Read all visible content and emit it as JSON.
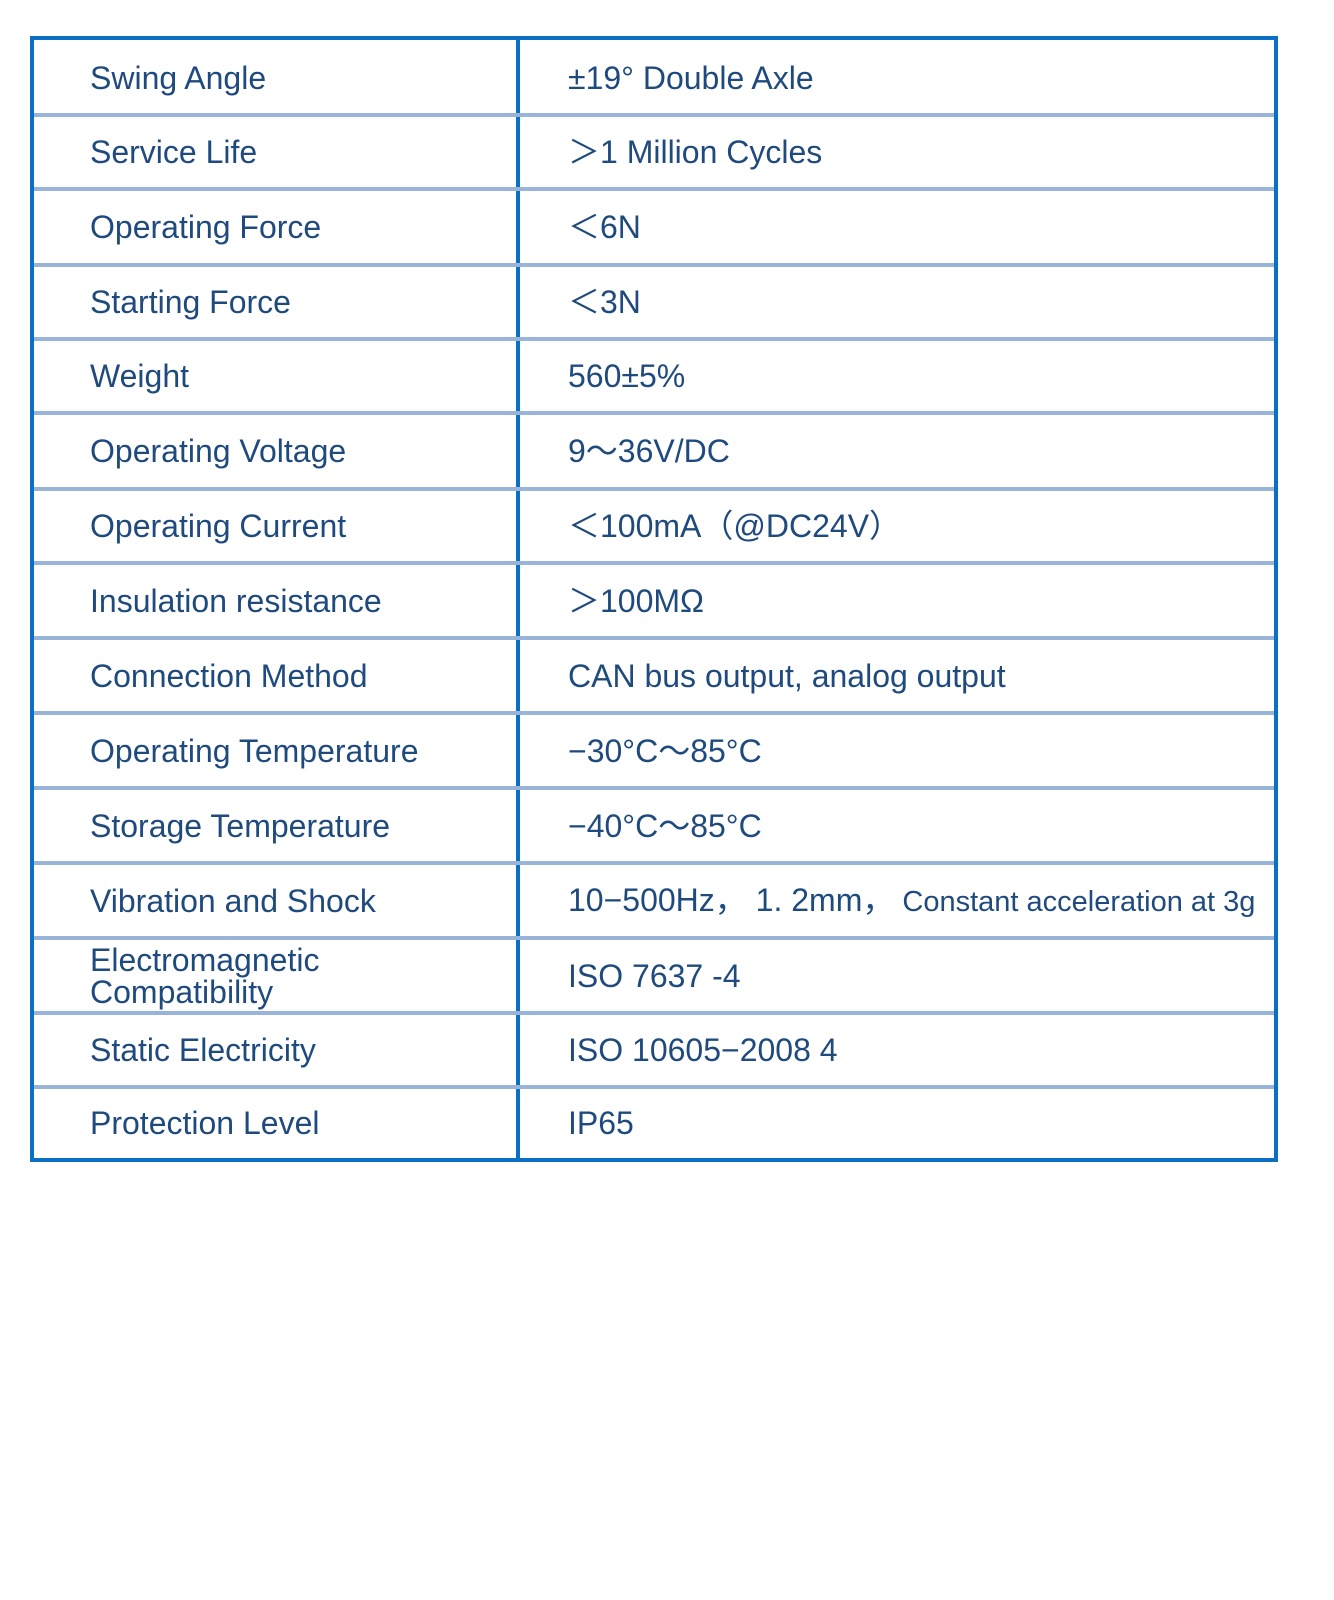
{
  "colors": {
    "border": "#0b6fc6",
    "row_separator": "#98b4d9",
    "text": "#1f4a7e"
  },
  "rows": [
    {
      "label": "Swing Angle",
      "value": "±19°  Double Axle"
    },
    {
      "label": "Service Life",
      "value": "＞1 Million Cycles"
    },
    {
      "label": "Operating Force",
      "value": "＜6N"
    },
    {
      "label": "Starting Force",
      "value": "＜3N"
    },
    {
      "label": "Weight",
      "value": "560±5%"
    },
    {
      "label": "Operating Voltage",
      "value": "9～36V/DC"
    },
    {
      "label": "Operating Current",
      "value": "＜100mA（@DC24V）"
    },
    {
      "label": "Insulation resistance",
      "value": "＞100MΩ"
    },
    {
      "label": "Connection Method",
      "value": "CAN bus output, analog output"
    },
    {
      "label": "Operating Temperature",
      "value": "−30°C～85°C"
    },
    {
      "label": "Storage Temperature",
      "value": "−40°C～85°C"
    },
    {
      "label": "Vibration and Shock",
      "value": "10−500Hz， 1. 2mm，",
      "value_note": "Constant acceleration at 3g"
    },
    {
      "label": "Electromagnetic Compatibility",
      "value": "ISO 7637 -4"
    },
    {
      "label": "Static Electricity",
      "value": "ISO  10605−2008   4"
    },
    {
      "label": "Protection Level",
      "value": "IP65"
    }
  ]
}
